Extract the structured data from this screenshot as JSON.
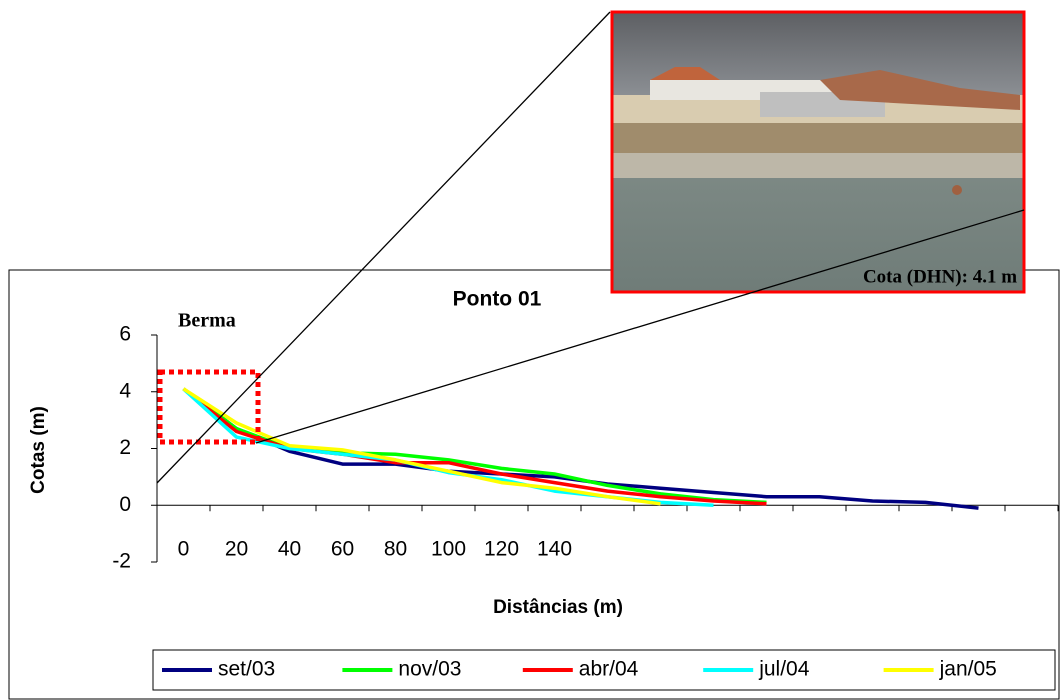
{
  "chart_data": {
    "type": "line",
    "title": "Ponto 01",
    "annotation": "Berma",
    "photo_caption": "Cota (DHN): 4.1 m",
    "x_label": "Distâncias (m)",
    "y_label": "Cotas (m)",
    "categories": [
      "0",
      "20",
      "40",
      "60",
      "80",
      "100",
      "120",
      "140",
      null,
      null,
      null,
      null,
      null,
      null,
      null,
      null,
      null
    ],
    "ylim": [
      -2,
      6
    ],
    "yticks": [
      -2,
      0,
      2,
      4,
      6
    ],
    "legend": "bottom",
    "series": [
      {
        "name": "set/03",
        "color": "#000080",
        "values": [
          4.1,
          2.7,
          1.9,
          1.45,
          1.45,
          1.2,
          1.1,
          1.0,
          0.75,
          0.6,
          0.45,
          0.3,
          0.3,
          0.15,
          0.1,
          -0.1,
          null
        ]
      },
      {
        "name": "nov/03",
        "color": "#00ff00",
        "values": [
          4.1,
          2.7,
          2.0,
          1.85,
          1.8,
          1.6,
          1.3,
          1.1,
          0.7,
          0.4,
          0.2,
          0.1,
          null,
          null,
          null,
          null,
          null
        ]
      },
      {
        "name": "abr/04",
        "color": "#ff0000",
        "values": [
          4.1,
          2.6,
          2.0,
          1.8,
          1.5,
          1.5,
          1.1,
          0.8,
          0.5,
          0.3,
          0.15,
          0.05,
          null,
          null,
          null,
          null,
          null
        ]
      },
      {
        "name": "jul/04",
        "color": "#00ffff",
        "values": [
          4.1,
          2.4,
          2.0,
          1.8,
          1.6,
          1.15,
          0.9,
          0.5,
          0.3,
          0.1,
          0,
          null,
          null,
          null,
          null,
          null,
          null
        ]
      },
      {
        "name": "jan/05",
        "color": "#ffff00",
        "values": [
          4.1,
          2.9,
          2.1,
          1.95,
          1.6,
          1.2,
          0.8,
          0.6,
          0.3,
          0.05,
          null,
          null,
          null,
          null,
          null,
          null,
          null
        ]
      }
    ]
  }
}
